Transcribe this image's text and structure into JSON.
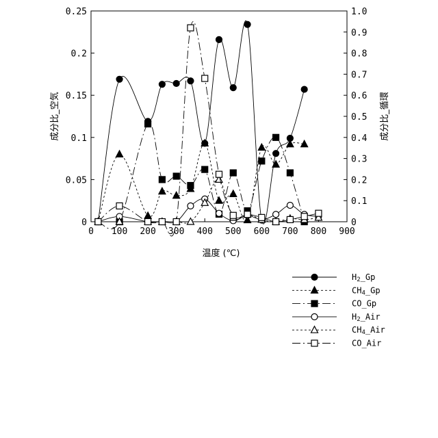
{
  "chart_data": {
    "type": "line",
    "xlabel": "温度 (℃)",
    "ylabel_left": "成分比_空気",
    "ylabel_right": "成分比_循環",
    "xlim": [
      0,
      900
    ],
    "ylim_left": [
      0,
      0.25
    ],
    "ylim_right": [
      0,
      1.0
    ],
    "x_ticks": [
      "0",
      "100",
      "200",
      "300",
      "400",
      "500",
      "600",
      "700",
      "800",
      "900"
    ],
    "y_left_ticks": [
      "0",
      "0.05",
      "0.1",
      "0.15",
      "0.2",
      "0.25"
    ],
    "y_right_ticks": [
      "0",
      "0.1",
      "0.2",
      "0.3",
      "0.4",
      "0.5",
      "0.6",
      "0.7",
      "0.8",
      "0.9",
      "1.0"
    ],
    "grid": false,
    "legend_position": "bottom-right",
    "series": [
      {
        "name": "H2_Gp",
        "name_main": "H",
        "name_sub": "2",
        "name_rest": "_Gp",
        "marker": "circle-filled",
        "dash": "solid",
        "axis": "left",
        "points": [
          [
            25,
            0
          ],
          [
            100,
            0.169
          ],
          [
            200,
            0.119
          ],
          [
            250,
            0.163
          ],
          [
            300,
            0.164
          ],
          [
            350,
            0.167
          ],
          [
            400,
            0.093
          ],
          [
            450,
            0.216
          ],
          [
            500,
            0.159
          ],
          [
            550,
            0.234
          ],
          [
            600,
            0.002
          ],
          [
            650,
            0.081
          ],
          [
            700,
            0.099
          ],
          [
            750,
            0.157
          ]
        ]
      },
      {
        "name": "CH4_Gp",
        "name_main": "CH",
        "name_sub": "4",
        "name_rest": "_Gp",
        "marker": "triangle-filled",
        "dash": "dashed",
        "axis": "left",
        "points": [
          [
            25,
            0
          ],
          [
            100,
            0.08
          ],
          [
            200,
            0.007
          ],
          [
            250,
            0.036
          ],
          [
            300,
            0.031
          ],
          [
            350,
            0.039
          ],
          [
            400,
            0.093
          ],
          [
            450,
            0.025
          ],
          [
            500,
            0.033
          ],
          [
            550,
            0.002
          ],
          [
            600,
            0.088
          ],
          [
            650,
            0.068
          ],
          [
            700,
            0.092
          ],
          [
            750,
            0.092
          ]
        ]
      },
      {
        "name": "CO_Gp",
        "name_main": "CO",
        "name_sub": "",
        "name_rest": "_Gp",
        "marker": "square-filled",
        "dash": "longdash",
        "axis": "left",
        "points": [
          [
            25,
            0
          ],
          [
            100,
            0
          ],
          [
            200,
            0.116
          ],
          [
            250,
            0.05
          ],
          [
            300,
            0.054
          ],
          [
            350,
            0.043
          ],
          [
            400,
            0.062
          ],
          [
            450,
            0.009
          ],
          [
            500,
            0.058
          ],
          [
            550,
            0.013
          ],
          [
            600,
            0.072
          ],
          [
            650,
            0.1
          ],
          [
            700,
            0.058
          ],
          [
            750,
            0
          ]
        ]
      },
      {
        "name": "H2_Air",
        "name_main": "H",
        "name_sub": "2",
        "name_rest": "_Air",
        "marker": "circle-open",
        "dash": "solid",
        "axis": "right",
        "points": [
          [
            25,
            0
          ],
          [
            100,
            0.025
          ],
          [
            200,
            0
          ],
          [
            250,
            0
          ],
          [
            300,
            0
          ],
          [
            350,
            0.075
          ],
          [
            400,
            0.108
          ],
          [
            450,
            0.04
          ],
          [
            500,
            0.005
          ],
          [
            550,
            0.03
          ],
          [
            600,
            0.01
          ],
          [
            650,
            0.035
          ],
          [
            700,
            0.078
          ],
          [
            750,
            0.035
          ],
          [
            800,
            0.025
          ]
        ]
      },
      {
        "name": "CH4_Air",
        "name_main": "CH",
        "name_sub": "4",
        "name_rest": "_Air",
        "marker": "triangle-open",
        "dash": "dashed",
        "axis": "right",
        "points": [
          [
            25,
            0
          ],
          [
            100,
            0
          ],
          [
            200,
            0
          ],
          [
            250,
            0
          ],
          [
            300,
            0
          ],
          [
            350,
            0
          ],
          [
            400,
            0.09
          ],
          [
            450,
            0.2
          ],
          [
            500,
            0.02
          ],
          [
            550,
            0.035
          ],
          [
            600,
            0.01
          ],
          [
            650,
            0
          ],
          [
            700,
            0.015
          ],
          [
            750,
            0.01
          ],
          [
            800,
            0.02
          ]
        ]
      },
      {
        "name": "CO_Air",
        "name_main": "CO",
        "name_sub": "",
        "name_rest": "_Air",
        "marker": "square-open",
        "dash": "longdash",
        "axis": "right",
        "points": [
          [
            25,
            0
          ],
          [
            100,
            0.075
          ],
          [
            200,
            0
          ],
          [
            250,
            0
          ],
          [
            300,
            0
          ],
          [
            350,
            0.92
          ],
          [
            400,
            0.68
          ],
          [
            450,
            0.225
          ],
          [
            500,
            0.03
          ],
          [
            550,
            0.035
          ],
          [
            600,
            0.02
          ],
          [
            650,
            0
          ],
          [
            700,
            0.01
          ],
          [
            750,
            0.025
          ],
          [
            800,
            0.04
          ]
        ]
      }
    ]
  }
}
